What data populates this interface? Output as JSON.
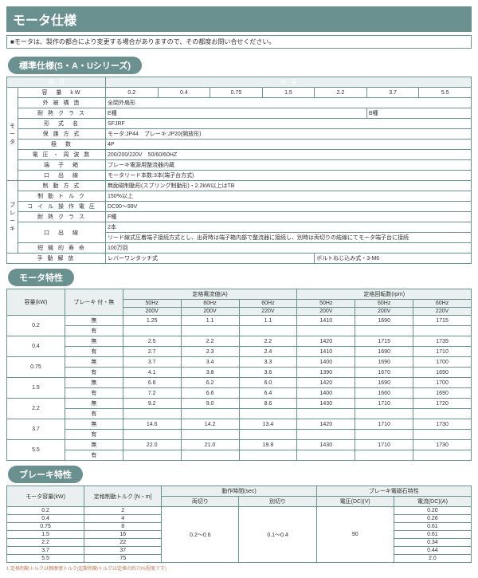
{
  "banner": {
    "title": "モータ仕様",
    "sub": "■モータは、製作の都合により変更する場合がありますので、その都度お問い合せください。"
  },
  "sec1": {
    "title": "標準仕様(S・A・Uシリーズ)",
    "h": {
      "item": "項　目",
      "content": "内　容"
    },
    "r": {
      "cap": "容　量　kW",
      "cap_vals": [
        "0.2",
        "0.4",
        "0.75",
        "1.5",
        "2.2",
        "3.7",
        "5.5"
      ],
      "frame": "外 被 構 造",
      "frame_v": "全閉外扇形",
      "ins": "耐 熱 ク ラ ス",
      "ins_v": "E種",
      "ins_v2": "B種",
      "type": "形　式　名",
      "type_v": "SFJRF",
      "prot": "保 護 方 式",
      "prot_v": "モータ:JP44　ブレーキ:JP20(開放形)",
      "pole": "極　数",
      "pole_v": "4P",
      "volt": "電 圧 ・ 周 波 数",
      "volt_v": "200/200/220V　50/60/60HZ",
      "term": "端　子　箱",
      "term_v": "ブレーキ電源用整流器内蔵",
      "lead": "口　出　線",
      "lead_v": "モータリード本数:3本(端子台方式)",
      "brake": "制 動 方 式",
      "brake_v": "無励磁制動形(スプリング制動形)・2.2kW以上はTB",
      "btq": "制 動 ト ル ク",
      "btq_v": "150%以上",
      "coil": "コ イ ル 操 作 電 圧",
      "coil_v": "DC90〜99V",
      "bins": "耐 熱 ク ラ ス",
      "bins_v": "F種",
      "blead": "口　出　線",
      "blead_v": "リード線式圧着端子接続方式とし、出荷時は端子箱内部で整流器に接続し、別時は両切りの結線にてモータ端子台に接続",
      "blead_n": "2本",
      "life": "短 機 的 寿 命",
      "life_v": "100万回",
      "rel": "手 動 解 放",
      "rel_v": "レバーワンタッチ式",
      "rel_r": "ボルトねじ込み式・3-M6"
    }
  },
  "sec2": {
    "title": "モータ特性",
    "h": {
      "cap": "容量(kW)",
      "brk": "ブレーキ\n付・無",
      "cur": "定格電流値(A)",
      "rpm": "定格回転数(rpm)",
      "f50": "50Hz",
      "f60": "60Hz",
      "v200": "200V",
      "v220": "220V"
    },
    "rows": [
      {
        "cap": "0.2",
        "a": [
          "無",
          "1.25",
          "1.1",
          "1.1",
          "1410",
          "1690",
          "1715"
        ],
        "b": [
          "有",
          "",
          "",
          "",
          "",
          "",
          ""
        ]
      },
      {
        "cap": "0.4",
        "a": [
          "無",
          "2.5",
          "2.2",
          "2.2",
          "1420",
          "1715",
          "1735"
        ],
        "b": [
          "有",
          "2.7",
          "2.3",
          "2.4",
          "1410",
          "1690",
          "1710"
        ]
      },
      {
        "cap": "0.75",
        "a": [
          "無",
          "3.7",
          "3.4",
          "3.3",
          "1400",
          "1690",
          "1700"
        ],
        "b": [
          "有",
          "4.1",
          "3.8",
          "3.6",
          "1390",
          "1670",
          "1690"
        ]
      },
      {
        "cap": "1.5",
        "a": [
          "無",
          "6.6",
          "6.2",
          "6.0",
          "1420",
          "1690",
          "1700"
        ],
        "b": [
          "有",
          "7.2",
          "6.6",
          "6.4",
          "1400",
          "1660",
          "1690"
        ]
      },
      {
        "cap": "2.2",
        "a": [
          "無",
          "9.2",
          "9.0",
          "8.6",
          "1430",
          "1710",
          "1720"
        ],
        "b": [
          "有",
          "",
          "",
          "",
          "",
          "",
          ""
        ]
      },
      {
        "cap": "3.7",
        "a": [
          "無",
          "14.6",
          "14.2",
          "13.4",
          "1420",
          "1710",
          "1730"
        ],
        "b": [
          "有",
          "",
          "",
          "",
          "",
          "",
          ""
        ]
      },
      {
        "cap": "5.5",
        "a": [
          "無",
          "22.0",
          "21.0",
          "19.8",
          "1430",
          "1710",
          "1730"
        ],
        "b": [
          "有",
          "",
          "",
          "",
          "",
          "",
          ""
        ]
      }
    ]
  },
  "sec3": {
    "title": "ブレーキ特性",
    "h": {
      "cap": "モータ容量(kW)",
      "tq": "定格制動トルク\n[N・m]",
      "time": "動作時間(sec)",
      "mag": "ブレーキ電磁石特性",
      "both": "両切り",
      "sep": "別切り",
      "dcv": "電圧(DC)(V)",
      "dca": "電流(DC)(A)"
    },
    "rows": [
      [
        "0.2",
        "2",
        "",
        "",
        "",
        "0.20"
      ],
      [
        "0.4",
        "4",
        "",
        "",
        "",
        "0.26"
      ],
      [
        "0.75",
        "8",
        "",
        "",
        "",
        "0.61"
      ],
      [
        "1.5",
        "16",
        "0.2〜0.6",
        "0.1〜0.4",
        "90",
        "0.61"
      ],
      [
        "2.2",
        "22",
        "",
        "",
        "",
        "0.34"
      ],
      [
        "3.7",
        "37",
        "",
        "",
        "",
        "0.44"
      ],
      [
        "5.5",
        "75",
        "",
        "",
        "",
        "2.0"
      ]
    ],
    "note": "1 定格制動トルクは静摩擦トルク(起動制動トルクは定格の約70%程度です)"
  }
}
